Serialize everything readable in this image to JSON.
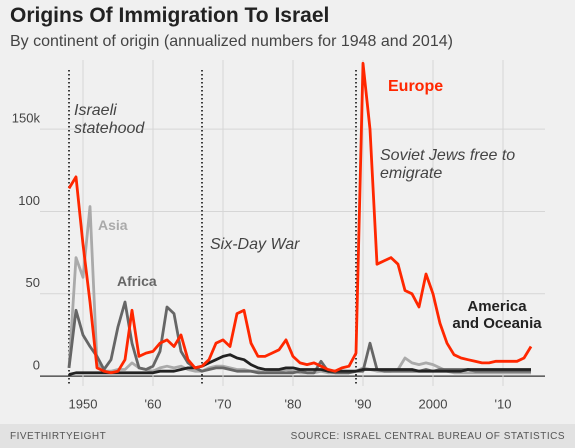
{
  "chart_data": {
    "type": "line",
    "title": "Origins Of Immigration To Israel",
    "subtitle": "By continent of origin (annualized numbers for 1948 and 2014)",
    "x": [
      1948,
      1949,
      1950,
      1951,
      1952,
      1953,
      1954,
      1955,
      1956,
      1957,
      1958,
      1959,
      1960,
      1961,
      1962,
      1963,
      1964,
      1965,
      1966,
      1967,
      1968,
      1969,
      1970,
      1971,
      1972,
      1973,
      1974,
      1975,
      1976,
      1977,
      1978,
      1979,
      1980,
      1981,
      1982,
      1983,
      1984,
      1985,
      1986,
      1987,
      1988,
      1989,
      1990,
      1991,
      1992,
      1993,
      1994,
      1995,
      1996,
      1997,
      1998,
      1999,
      2000,
      2001,
      2002,
      2003,
      2004,
      2005,
      2006,
      2007,
      2008,
      2009,
      2010,
      2011,
      2012,
      2013,
      2014
    ],
    "series": [
      {
        "name": "Asia",
        "color": "#aaaaaa",
        "values": [
          5,
          72,
          60,
          103,
          8,
          3,
          3,
          4,
          4,
          8,
          5,
          4,
          3,
          5,
          6,
          5,
          6,
          4,
          3,
          3,
          5,
          6,
          6,
          5,
          4,
          4,
          3,
          3,
          2,
          3,
          3,
          4,
          3,
          2,
          2,
          2,
          3,
          2,
          2,
          2,
          2,
          3,
          5,
          4,
          3,
          3,
          3,
          4,
          11,
          8,
          7,
          8,
          7,
          5,
          3,
          2,
          2,
          2,
          2,
          2,
          2,
          2,
          2,
          2,
          2,
          2,
          2
        ]
      },
      {
        "name": "Africa",
        "color": "#666666",
        "values": [
          5,
          40,
          25,
          18,
          12,
          4,
          10,
          30,
          45,
          20,
          5,
          4,
          6,
          15,
          42,
          38,
          15,
          8,
          5,
          3,
          4,
          5,
          5,
          4,
          3,
          3,
          3,
          2,
          2,
          2,
          2,
          2,
          2,
          3,
          2,
          2,
          9,
          3,
          2,
          2,
          2,
          3,
          3,
          20,
          4,
          3,
          3,
          3,
          3,
          3,
          3,
          4,
          3,
          4,
          4,
          4,
          4,
          4,
          3,
          3,
          3,
          3,
          3,
          3,
          3,
          3,
          3
        ]
      },
      {
        "name": "America and Oceania",
        "color": "#222222",
        "values": [
          1,
          2,
          2,
          2,
          2,
          2,
          2,
          2,
          2,
          2,
          2,
          2,
          2,
          3,
          3,
          3,
          4,
          5,
          5,
          6,
          8,
          10,
          12,
          13,
          11,
          10,
          7,
          5,
          4,
          4,
          4,
          5,
          5,
          4,
          4,
          4,
          4,
          3,
          3,
          3,
          3,
          3,
          4,
          4,
          4,
          4,
          4,
          4,
          4,
          4,
          3,
          3,
          3,
          3,
          3,
          3,
          3,
          4,
          4,
          4,
          4,
          4,
          4,
          4,
          4,
          4,
          4
        ]
      },
      {
        "name": "Europe",
        "color": "#ff2700",
        "values": [
          114,
          121,
          80,
          45,
          5,
          3,
          2,
          3,
          10,
          40,
          12,
          14,
          15,
          20,
          22,
          18,
          25,
          10,
          5,
          6,
          10,
          20,
          22,
          18,
          38,
          40,
          20,
          12,
          12,
          14,
          16,
          22,
          12,
          8,
          7,
          8,
          6,
          4,
          3,
          5,
          6,
          14,
          190,
          150,
          68,
          70,
          72,
          68,
          52,
          50,
          42,
          62,
          50,
          32,
          20,
          13,
          11,
          10,
          9,
          8,
          8,
          9,
          9,
          9,
          9,
          11,
          18
        ]
      }
    ],
    "xlim": [
      1946,
      2016
    ],
    "ylim": [
      -6,
      192
    ],
    "xticks": [
      1950,
      {
        "value": 1960,
        "label": "'60"
      },
      {
        "value": 1970,
        "label": "'70"
      },
      {
        "value": 1980,
        "label": "'80"
      },
      {
        "value": 1990,
        "label": "'90"
      },
      2000,
      {
        "value": 2010,
        "label": "'10"
      }
    ],
    "yticks": [
      0,
      50,
      100,
      {
        "value": 150,
        "label": "150k"
      }
    ],
    "grid": true,
    "annotations": [
      {
        "text": "Israeli statehood",
        "x": 1948
      },
      {
        "text": "Six-Day War",
        "x": 1967
      },
      {
        "text": "Soviet Jews free to emigrate",
        "x": 1989
      }
    ],
    "footer_left": "FIVETHIRTYEIGHT",
    "footer_right": "SOURCE: ISRAEL CENTRAL BUREAU OF STATISTICS"
  }
}
